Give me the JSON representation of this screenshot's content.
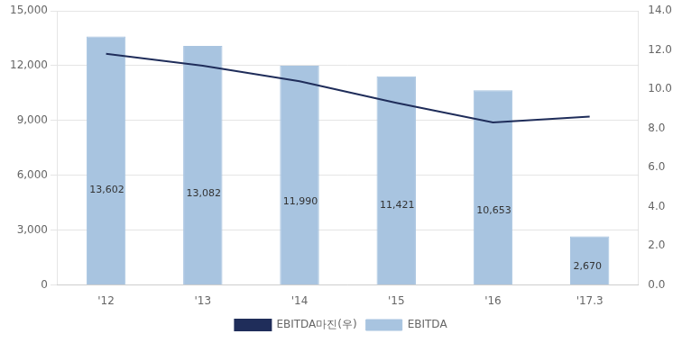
{
  "chart_data": {
    "type": "bar",
    "categories": [
      "'12",
      "'13",
      "'14",
      "'15",
      "'16",
      "'17.3"
    ],
    "series": [
      {
        "name": "EBITDA",
        "type": "bar",
        "color": "#a8c4e0",
        "values": [
          13602,
          13082,
          11990,
          11421,
          10653,
          2670
        ],
        "value_labels": [
          "13,602",
          "13,082",
          "11,990",
          "11,421",
          "10,653",
          "2,670"
        ],
        "data_labels": true
      },
      {
        "name": "EBITDA마진(우)",
        "type": "line",
        "axis": "y2",
        "color": "#1f2d5a",
        "marker": "none",
        "values": [
          11.8,
          11.2,
          10.4,
          9.3,
          8.3,
          8.6
        ]
      }
    ],
    "ylim": [
      0,
      15000
    ],
    "yticks": [
      0,
      {
        "value": 3000,
        "label": "3,000"
      },
      {
        "value": 6000,
        "label": "6,000"
      },
      {
        "value": 9000,
        "label": "9,000"
      },
      {
        "value": 12000,
        "label": "12,000"
      },
      {
        "value": 15000,
        "label": "15,000"
      }
    ],
    "y2lim": [
      0.0,
      14.0
    ],
    "y2ticks": [
      {
        "value": 0.0,
        "label": "0.0"
      },
      {
        "value": 2.0,
        "label": "2.0"
      },
      {
        "value": 4.0,
        "label": "4.0"
      },
      {
        "value": 6.0,
        "label": "6.0"
      },
      {
        "value": 8.0,
        "label": "8.0"
      },
      {
        "value": 10.0,
        "label": "10.0"
      },
      {
        "value": 12.0,
        "label": "12.0"
      },
      {
        "value": 14.0,
        "label": "14.0"
      }
    ],
    "grid": true,
    "legend": "bottom"
  }
}
